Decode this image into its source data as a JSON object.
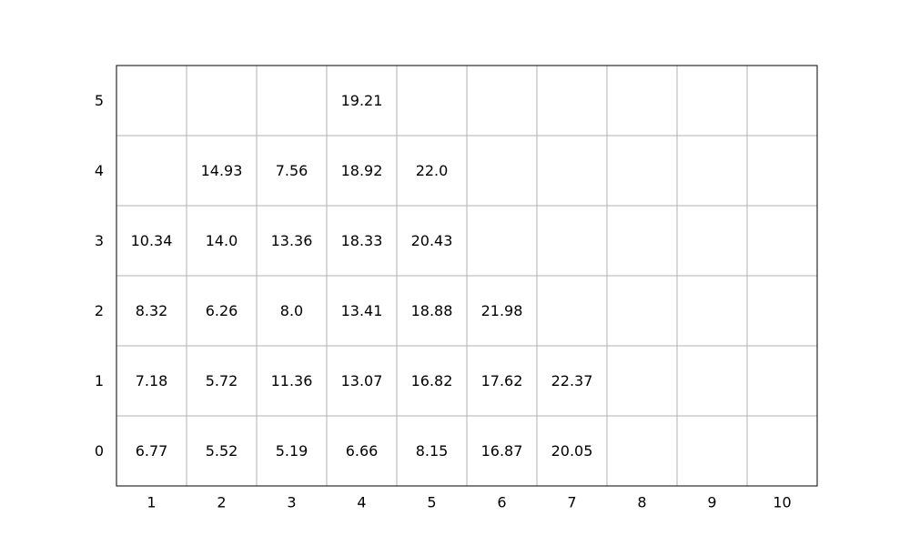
{
  "chart_data": {
    "type": "table",
    "x_ticks": [
      "1",
      "2",
      "3",
      "4",
      "5",
      "6",
      "7",
      "8",
      "9",
      "10"
    ],
    "y_ticks": [
      "0",
      "1",
      "2",
      "3",
      "4",
      "5"
    ],
    "grid": true,
    "grid_color": "#b0b0b0",
    "frame_color": "#000000",
    "rows": [
      {
        "y": "0",
        "values": [
          "6.77",
          "5.52",
          "5.19",
          "6.66",
          "8.15",
          "16.87",
          "20.05",
          null,
          null,
          null
        ]
      },
      {
        "y": "1",
        "values": [
          "7.18",
          "5.72",
          "11.36",
          "13.07",
          "16.82",
          "17.62",
          "22.37",
          null,
          null,
          null
        ]
      },
      {
        "y": "2",
        "values": [
          "8.32",
          "6.26",
          "8.0",
          "13.41",
          "18.88",
          "21.98",
          null,
          null,
          null,
          null
        ]
      },
      {
        "y": "3",
        "values": [
          "10.34",
          "14.0",
          "13.36",
          "18.33",
          "20.43",
          null,
          null,
          null,
          null,
          null
        ]
      },
      {
        "y": "4",
        "values": [
          null,
          "14.93",
          "7.56",
          "18.92",
          "22.0",
          null,
          null,
          null,
          null,
          null
        ]
      },
      {
        "y": "5",
        "values": [
          null,
          null,
          null,
          "19.21",
          null,
          null,
          null,
          null,
          null,
          null
        ]
      }
    ]
  }
}
